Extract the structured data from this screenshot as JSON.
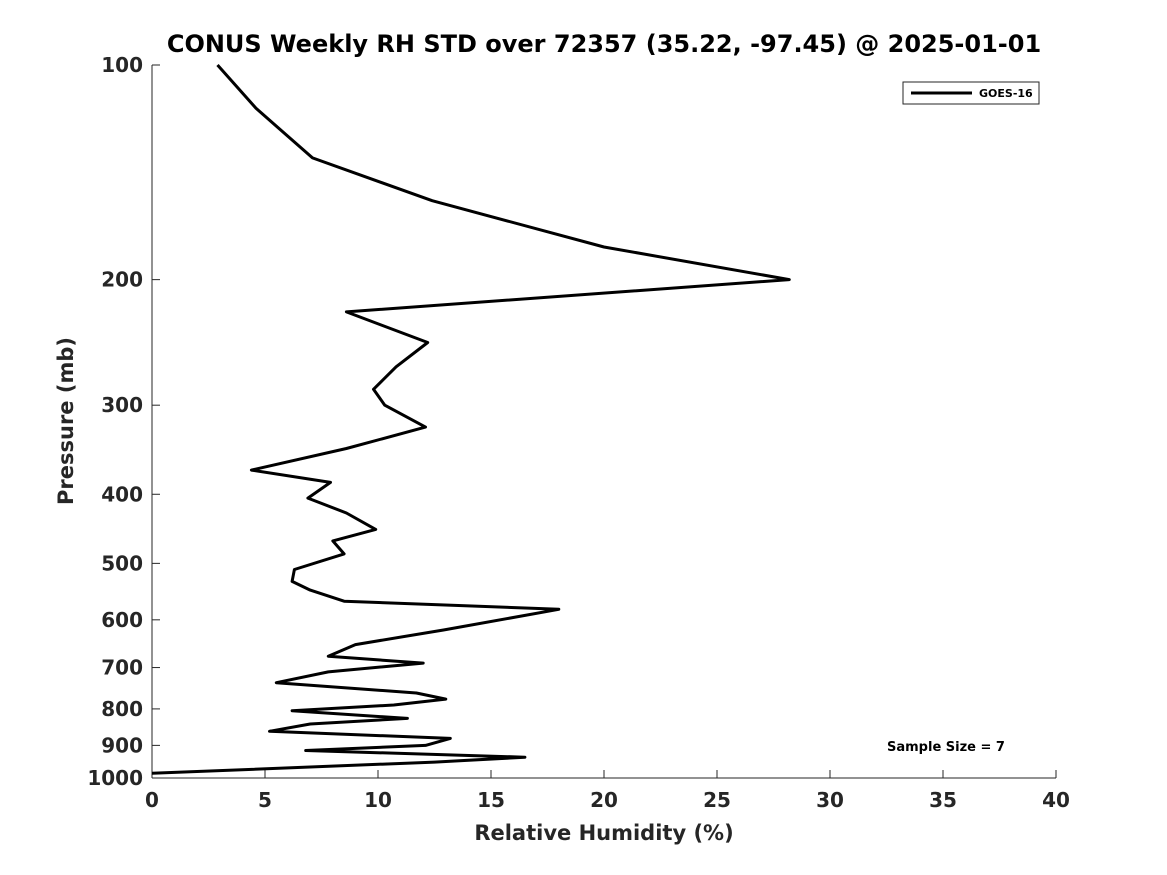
{
  "chart_data": {
    "type": "line",
    "title": "CONUS Weekly RH STD over 72357 (35.22, -97.45) @ 2025-01-01",
    "xlabel": "Relative Humidity (%)",
    "ylabel": "Pressure (mb)",
    "xlim": [
      0,
      40
    ],
    "ylim": [
      1000,
      100
    ],
    "y_scale": "log",
    "y_reversed": true,
    "x_ticks": [
      0,
      5,
      10,
      15,
      20,
      25,
      30,
      35,
      40
    ],
    "y_ticks": [
      100,
      200,
      300,
      400,
      500,
      600,
      700,
      800,
      900,
      1000
    ],
    "grid": false,
    "legend_position": "top-right",
    "series": [
      {
        "name": "GOES-16",
        "color": "#000000",
        "x": [
          2.9,
          4.6,
          7.1,
          12.4,
          20.0,
          28.2,
          8.6,
          12.2,
          10.8,
          9.8,
          10.3,
          12.1,
          8.6,
          4.4,
          7.9,
          6.9,
          8.6,
          9.9,
          8.0,
          8.5,
          6.3,
          6.2,
          7.0,
          8.5,
          18.0,
          12.9,
          9.0,
          7.8,
          12.0,
          7.8,
          5.5,
          11.7,
          13.0,
          10.7,
          6.2,
          11.3,
          7.0,
          5.2,
          13.2,
          12.1,
          6.8,
          16.5,
          12.5,
          0.0
        ],
        "y": [
          100,
          115,
          135,
          155,
          180,
          200,
          222,
          245,
          265,
          285,
          300,
          322,
          345,
          370,
          385,
          405,
          425,
          448,
          465,
          485,
          510,
          530,
          545,
          565,
          580,
          620,
          650,
          675,
          690,
          710,
          735,
          760,
          775,
          790,
          805,
          825,
          840,
          860,
          880,
          900,
          915,
          935,
          950,
          985
        ]
      }
    ],
    "annotations": [
      "Sample Size = 7"
    ]
  }
}
